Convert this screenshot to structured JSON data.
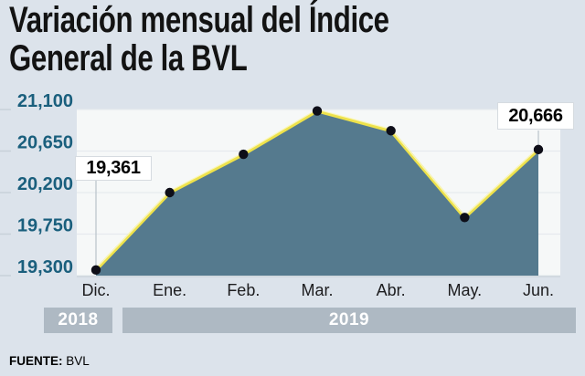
{
  "title": {
    "line1": "Variación mensual del Índice",
    "line2": "General de la BVL"
  },
  "chart_data": {
    "type": "area",
    "x_labels": [
      "Dic.",
      "Ene.",
      "Feb.",
      "Mar.",
      "Abr.",
      "May.",
      "Jun."
    ],
    "values": [
      19361,
      20200,
      20615,
      21085,
      20870,
      19930,
      20666
    ],
    "y_ticks": [
      19300,
      19750,
      20200,
      20650,
      21100
    ],
    "y_tick_labels": [
      "19,300",
      "19,750",
      "20,200",
      "20,650",
      "21,100"
    ],
    "ylim": [
      19300,
      21100
    ],
    "grid": true,
    "legend": false,
    "annotations": [
      {
        "index": 0,
        "label": "19,361"
      },
      {
        "index": 6,
        "label": "20,666"
      }
    ],
    "colors": {
      "page_bg": "#dce3eb",
      "plot_bg": "#f6f8f8",
      "gridline": "#e6eaee",
      "axis_line": "#ccd4db",
      "tick_mark": "#c8d1d9",
      "leader_line": "#b9c2ca",
      "area_fill": "#557a8e",
      "line": "#eee24b",
      "line_highlight": "#fbf8c8",
      "point": "#0e0e18",
      "y_label": "#1a5f7d",
      "x_label": "#1d1d1f",
      "band_bg": "#aeb9c3",
      "band_text": "#ffffff"
    }
  },
  "year_bands": [
    {
      "label": "2018"
    },
    {
      "label": "2019"
    }
  ],
  "source": {
    "label": "FUENTE:",
    "value": "BVL"
  }
}
